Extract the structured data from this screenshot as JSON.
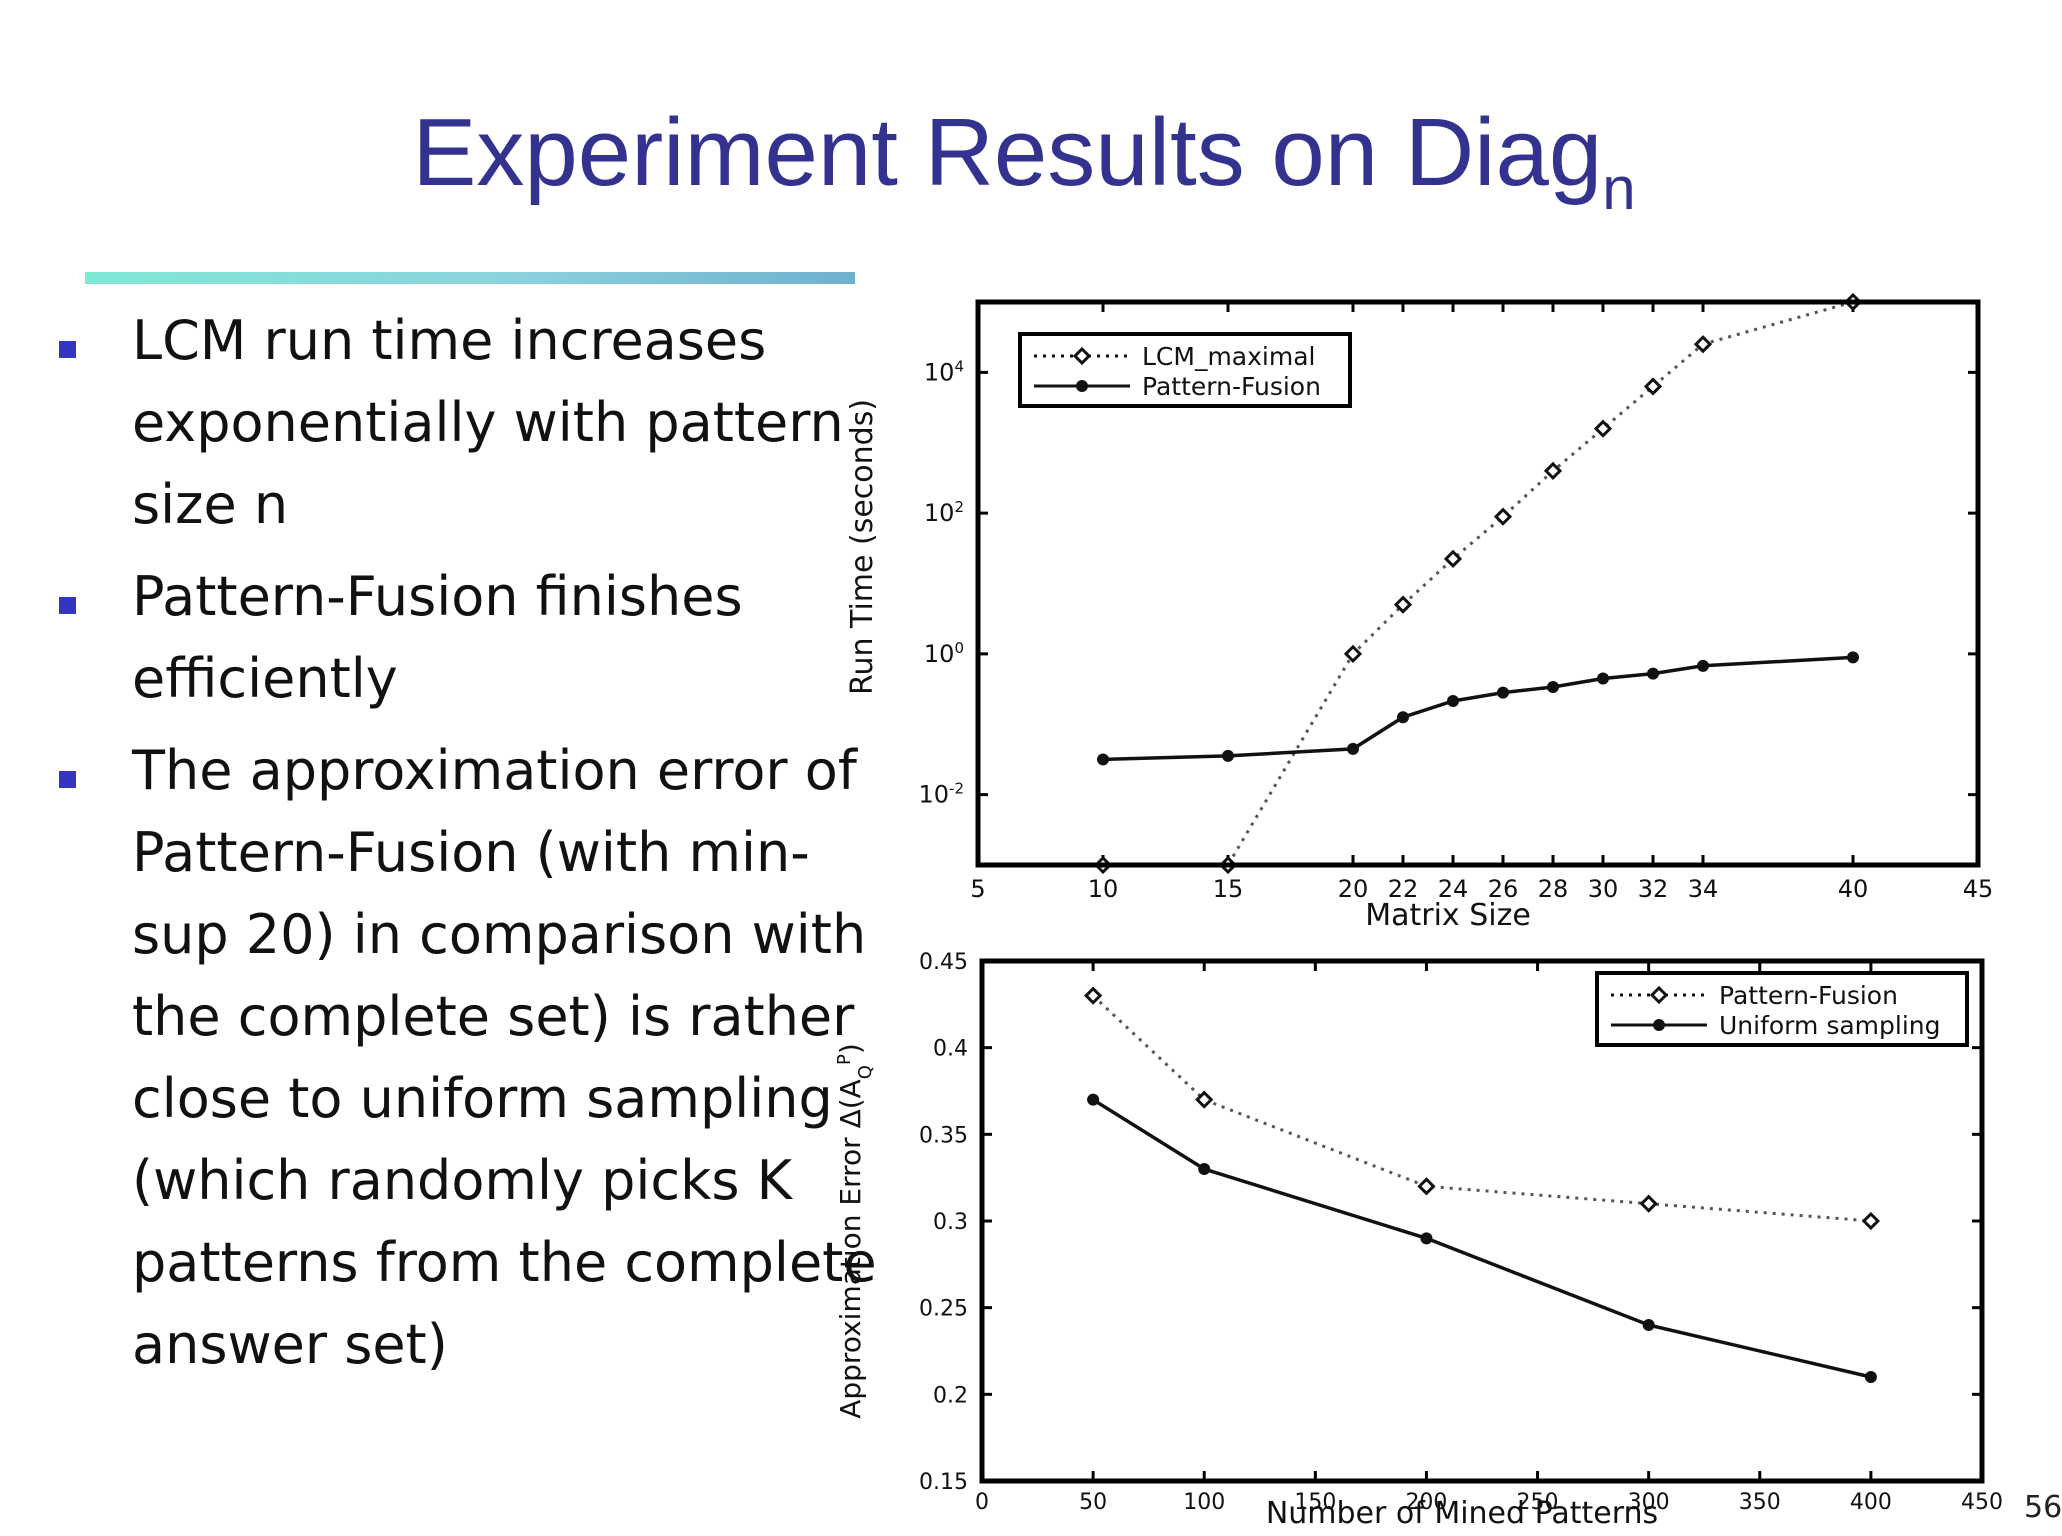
{
  "slide": {
    "title_main": "Experiment Results on Diag",
    "title_sub": "n",
    "page_number": "56",
    "accent_color": "#33338f",
    "bullet_color": "#3535c2",
    "bullets": [
      {
        "text": "LCM run time increases exponentially with pattern size n"
      },
      {
        "text": "Pattern-Fusion finishes efficiently"
      },
      {
        "text": "The approximation error of Pattern-Fusion (with min-sup 20) in comparison with the complete set) is rather close to uniform sampling (which randomly picks K patterns from the complete answer set)"
      }
    ]
  },
  "chart_data": [
    {
      "type": "line",
      "xlabel": "Matrix Size",
      "ylabel": "Run Time (seconds)",
      "yscale": "log",
      "xlim": [
        5,
        45
      ],
      "xticks": [
        "5",
        "10",
        "15",
        "20",
        "22",
        "24",
        "26",
        "28",
        "30",
        "32",
        "34",
        "40",
        "45"
      ],
      "yticks": [
        {
          "base": "10",
          "exp": "-2"
        },
        {
          "base": "10",
          "exp": "0"
        },
        {
          "base": "10",
          "exp": "2"
        },
        {
          "base": "10",
          "exp": "4"
        }
      ],
      "ylim_log10": [
        -3,
        5
      ],
      "legend_position": "top-left",
      "series": [
        {
          "name": "LCM_maximal",
          "style": "dotted",
          "marker": "diamond",
          "x": [
            10,
            15,
            20,
            22,
            24,
            26,
            28,
            30,
            32,
            34,
            40
          ],
          "log10_y": [
            -3,
            -3,
            0,
            0.7,
            1.35,
            1.95,
            2.6,
            3.2,
            3.8,
            4.4,
            5
          ]
        },
        {
          "name": "Pattern-Fusion",
          "style": "solid",
          "marker": "star",
          "x": [
            10,
            15,
            20,
            22,
            24,
            26,
            28,
            30,
            32,
            34,
            40
          ],
          "log10_y": [
            -1.5,
            -1.45,
            -1.35,
            -0.9,
            -0.67,
            -0.55,
            -0.47,
            -0.35,
            -0.28,
            -0.17,
            -0.05
          ]
        }
      ]
    },
    {
      "type": "line",
      "xlabel": "Number of Mined Patterns",
      "ylabel": "Approximation Error Δ(A",
      "ylabel_sub": "Q",
      "ylabel_sup": "P",
      "ylabel_close": ")",
      "xlim": [
        0,
        450
      ],
      "ylim": [
        0.15,
        0.45
      ],
      "xticks": [
        "0",
        "50",
        "100",
        "150",
        "200",
        "250",
        "300",
        "350",
        "400",
        "450"
      ],
      "yticks": [
        "0.15",
        "0.2",
        "0.25",
        "0.3",
        "0.35",
        "0.4",
        "0.45"
      ],
      "legend_position": "top-right",
      "series": [
        {
          "name": "Pattern-Fusion",
          "style": "dotted",
          "marker": "diamond",
          "x": [
            50,
            100,
            200,
            300,
            400
          ],
          "y": [
            0.43,
            0.37,
            0.32,
            0.31,
            0.3
          ]
        },
        {
          "name": "Uniform sampling",
          "style": "solid",
          "marker": "star",
          "x": [
            50,
            100,
            200,
            300,
            400
          ],
          "y": [
            0.37,
            0.33,
            0.29,
            0.24,
            0.21
          ]
        }
      ]
    }
  ]
}
